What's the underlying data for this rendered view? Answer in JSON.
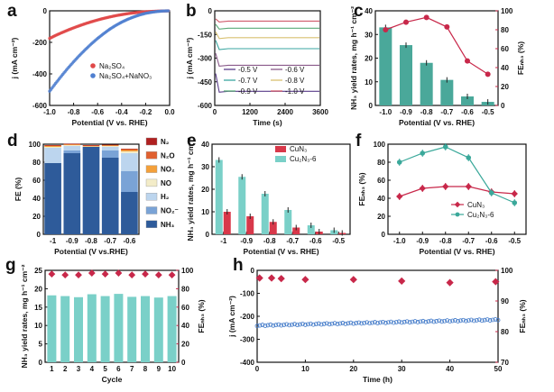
{
  "chart_data": [
    {
      "panel": "a",
      "type": "line",
      "xlabel": "Potential (V vs. RHE)",
      "ylabel": "j (mA cm⁻²)",
      "xlim": [
        -1.0,
        0.0
      ],
      "ylim": [
        -600,
        0
      ],
      "xticks": [
        "-1.0",
        "-0.8",
        "-0.6",
        "-0.4",
        "-0.2",
        "0.0"
      ],
      "yticks": [
        "0",
        "-200",
        "-400",
        "-600"
      ],
      "series": [
        {
          "name": "Na₂SO₄",
          "color": "#e04848",
          "x": [
            -1.0,
            -0.95,
            -0.9,
            -0.85,
            -0.8,
            -0.75,
            -0.7,
            -0.65,
            -0.6,
            -0.55,
            -0.5,
            -0.45,
            -0.4,
            -0.35,
            -0.3,
            -0.25,
            -0.2,
            -0.15,
            -0.1,
            -0.05,
            0.0
          ],
          "y": [
            -175,
            -156,
            -139,
            -123,
            -108,
            -94,
            -81,
            -69,
            -58,
            -48,
            -39,
            -31,
            -24,
            -18,
            -13,
            -9,
            -6,
            -4,
            -2,
            -1,
            0
          ]
        },
        {
          "name": "Na₂SO₄+NaNO₃",
          "color": "#4f7fd0",
          "x": [
            -1.0,
            -0.95,
            -0.9,
            -0.85,
            -0.8,
            -0.75,
            -0.7,
            -0.65,
            -0.6,
            -0.55,
            -0.5,
            -0.45,
            -0.4,
            -0.35,
            -0.3,
            -0.25,
            -0.2,
            -0.15,
            -0.1,
            -0.05,
            0.0
          ],
          "y": [
            -510,
            -460,
            -412,
            -366,
            -323,
            -282,
            -244,
            -208,
            -175,
            -145,
            -117,
            -93,
            -72,
            -54,
            -39,
            -26,
            -16,
            -9,
            -4,
            -1,
            0
          ]
        }
      ]
    },
    {
      "panel": "b",
      "type": "line",
      "xlabel": "Time (s)",
      "ylabel": "j (mA cm⁻²)",
      "xlim": [
        0,
        3600
      ],
      "ylim": [
        -600,
        0
      ],
      "xticks": [
        "0",
        "1200",
        "2400",
        "3600"
      ],
      "yticks": [
        "0",
        "-150",
        "-300",
        "-450",
        "-600"
      ],
      "series": [
        {
          "name": "-0.5 V",
          "color": "#5a3d8a",
          "value": -510
        },
        {
          "name": "-0.6 V",
          "color": "#8a5a8a",
          "value": -345
        },
        {
          "name": "-0.7 V",
          "color": "#3aa6a0",
          "value": -240
        },
        {
          "name": "-0.8 V",
          "color": "#d8c070",
          "value": -170
        },
        {
          "name": "-0.9 V",
          "color": "#5aaa78",
          "value": -110
        },
        {
          "name": "-1.0 V",
          "color": "#d05a6a",
          "value": -65
        }
      ]
    },
    {
      "panel": "c",
      "type": "bar",
      "xlabel": "Potential (V vs. RHE)",
      "ylabel": "NH₃ yield rates, mg h⁻¹ cm⁻²",
      "ylabel_right": "FEₙₕ₃ (%)",
      "categories": [
        "-1.0",
        "-0.9",
        "-0.8",
        "-0.7",
        "-0.6",
        "-0.5"
      ],
      "ylim": [
        0,
        40
      ],
      "ylim_right": [
        0,
        100
      ],
      "yticks": [
        "0",
        "10",
        "20",
        "30",
        "40"
      ],
      "yticks_right": [
        "0",
        "20",
        "40",
        "60",
        "80",
        "100"
      ],
      "series": [
        {
          "name": "Yield",
          "type": "bar",
          "color": "#4aa89a",
          "values": [
            33,
            25.5,
            18,
            10.8,
            3.8,
            1.5
          ]
        },
        {
          "name": "FE",
          "type": "line",
          "color": "#c8284a",
          "values": [
            80,
            88,
            93,
            83,
            47,
            33
          ]
        }
      ]
    },
    {
      "panel": "d",
      "type": "bar",
      "xlabel": "Potential (V vs.RHE)",
      "ylabel": "FE (%)",
      "categories": [
        "-1",
        "-0.9",
        "-0.8",
        "-0.7",
        "-0.6"
      ],
      "ylim": [
        0,
        100
      ],
      "yticks": [
        "0",
        "20",
        "40",
        "60",
        "80",
        "100"
      ],
      "stacked": true,
      "series": [
        {
          "name": "NH₃",
          "color": "#2e5b9a",
          "values": [
            79,
            90,
            97,
            85,
            47
          ]
        },
        {
          "name": "NO₂⁻",
          "color": "#7aa3d6",
          "values": [
            0,
            3,
            0,
            8,
            23
          ]
        },
        {
          "name": "H₂",
          "color": "#bcd5ee",
          "values": [
            17,
            5,
            0,
            4,
            20
          ]
        },
        {
          "name": "NO",
          "color": "#f3ecc8",
          "values": [
            1,
            1,
            0.5,
            1,
            2
          ]
        },
        {
          "name": "NO₂",
          "color": "#f4a03a",
          "values": [
            1,
            0.5,
            0.5,
            0.5,
            1.5
          ]
        },
        {
          "name": "N₂O",
          "color": "#e06030",
          "values": [
            0.5,
            0.5,
            0.5,
            0.5,
            1
          ]
        },
        {
          "name": "N₂",
          "color": "#b02020",
          "values": [
            0.5,
            0.5,
            0.5,
            0.5,
            0.5
          ]
        }
      ]
    },
    {
      "panel": "e",
      "type": "bar",
      "xlabel": "Potential (V vs. RHE)",
      "ylabel": "NH₃ yield rates, mg h⁻¹ cm⁻²",
      "categories": [
        "-1",
        "-0.9",
        "-0.8",
        "-0.7",
        "-0.6",
        "-0.5"
      ],
      "ylim": [
        0,
        40
      ],
      "yticks": [
        "0",
        "10",
        "20",
        "30",
        "40"
      ],
      "series": [
        {
          "name": "Cu₂N₃-6",
          "color": "#7ad0c8",
          "values": [
            33,
            25.5,
            18,
            10.8,
            4,
            1.8
          ]
        },
        {
          "name": "CuN₃",
          "color": "#d8384a",
          "values": [
            10,
            8,
            5.5,
            3,
            1.2,
            0.6
          ]
        }
      ]
    },
    {
      "panel": "f",
      "type": "line",
      "xlabel": "Potential (V vs. RHE)",
      "ylabel": "FEₙₕ₃ (%)",
      "categories": [
        "-1.0",
        "-0.9",
        "-0.8",
        "-0.7",
        "-0.6",
        "-0.5"
      ],
      "ylim": [
        0,
        100
      ],
      "yticks": [
        "0",
        "20",
        "40",
        "60",
        "80",
        "100"
      ],
      "series": [
        {
          "name": "CuN₃",
          "color": "#c8284a",
          "values": [
            42,
            51,
            53,
            53,
            47,
            45
          ]
        },
        {
          "name": "Cu₂N₃-6",
          "color": "#3aa89a",
          "values": [
            80,
            90,
            97,
            85,
            46,
            35
          ]
        }
      ]
    },
    {
      "panel": "g",
      "type": "bar",
      "xlabel": "Cycle",
      "ylabel": "NH₃ yield rates, mg h⁻¹ cm⁻²",
      "ylabel_right": "FEₙₕ₃ (%)",
      "categories": [
        "1",
        "2",
        "3",
        "4",
        "5",
        "6",
        "7",
        "8",
        "9",
        "10"
      ],
      "ylim": [
        0,
        25
      ],
      "ylim_right": [
        0,
        100
      ],
      "yticks": [
        "0",
        "5",
        "10",
        "15",
        "20",
        "25"
      ],
      "yticks_right": [
        "0",
        "20",
        "40",
        "60",
        "80",
        "100"
      ],
      "series": [
        {
          "name": "Yield",
          "type": "bar",
          "color": "#7ad0c8",
          "values": [
            18.2,
            18.0,
            17.7,
            18.5,
            18.0,
            18.6,
            17.8,
            18.0,
            17.6,
            18.0
          ]
        },
        {
          "name": "FE",
          "type": "scatter",
          "color": "#c8284a",
          "values": [
            96,
            95,
            95,
            97,
            96,
            97,
            95,
            96,
            95,
            95
          ]
        }
      ]
    },
    {
      "panel": "h",
      "type": "scatter",
      "xlabel": "Time (h)",
      "ylabel": "j (mA cm⁻²)",
      "ylabel_right": "FEₙₕ₃ (%)",
      "xlim": [
        0,
        50
      ],
      "ylim": [
        -400,
        0
      ],
      "ylim_right": [
        70,
        100
      ],
      "xticks": [
        "0",
        "10",
        "20",
        "30",
        "40",
        "50"
      ],
      "yticks": [
        "0",
        "-100",
        "-200",
        "-300",
        "-400"
      ],
      "yticks_right": [
        "70",
        "80",
        "90",
        "100"
      ],
      "series": [
        {
          "name": "j",
          "type": "line",
          "color": "#3f78c8",
          "x": [
            0,
            50
          ],
          "y": [
            -240,
            -215
          ]
        },
        {
          "name": "FE",
          "type": "scatter",
          "color": "#c8284a",
          "x": [
            0.5,
            3,
            5,
            10,
            20,
            30,
            40,
            49.5
          ],
          "y": [
            97.5,
            97.5,
            97.3,
            97,
            97,
            96.5,
            96,
            96.3
          ]
        }
      ]
    }
  ]
}
